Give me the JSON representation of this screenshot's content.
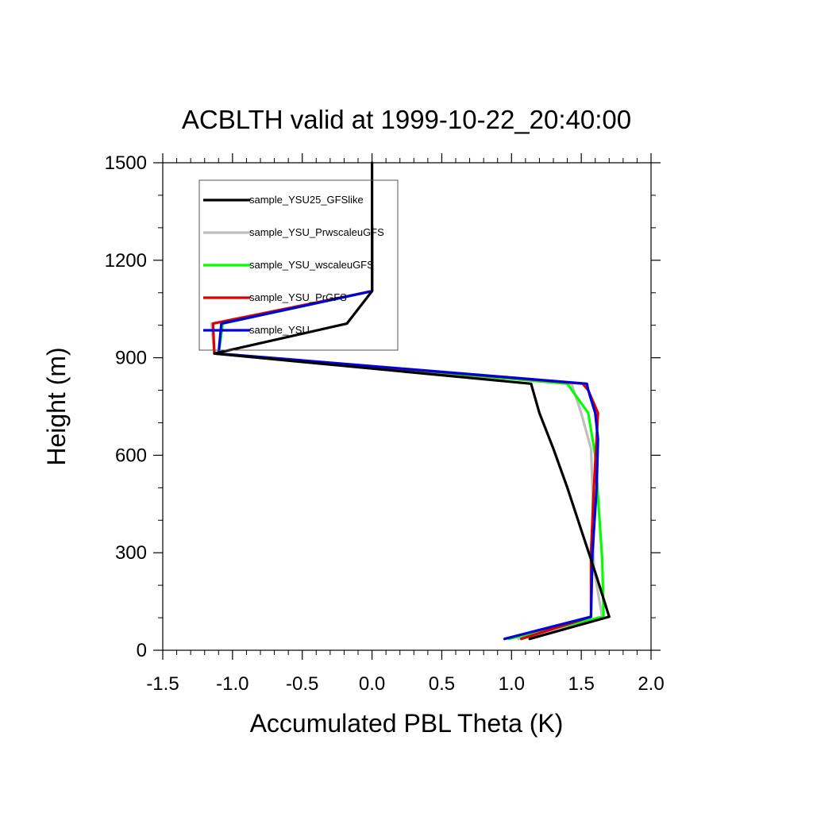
{
  "chart_data": {
    "type": "line",
    "title": "ACBLTH valid at 1999-10-22_20:40:00",
    "xlabel": "Accumulated PBL Theta (K)",
    "ylabel": "Height (m)",
    "xlim": [
      -1.5,
      2.0
    ],
    "ylim": [
      0,
      1500
    ],
    "xticks": [
      {
        "value": -1.5,
        "label": "-1.5"
      },
      {
        "value": -1.0,
        "label": "-1.0"
      },
      {
        "value": -0.5,
        "label": "-0.5"
      },
      {
        "value": 0.0,
        "label": "0.0"
      },
      {
        "value": 0.5,
        "label": "0.5"
      },
      {
        "value": 1.0,
        "label": "1.0"
      },
      {
        "value": 1.5,
        "label": "1.5"
      },
      {
        "value": 2.0,
        "label": "2.0"
      }
    ],
    "yticks": [
      {
        "value": 0,
        "label": "0"
      },
      {
        "value": 300,
        "label": "300"
      },
      {
        "value": 600,
        "label": "600"
      },
      {
        "value": 900,
        "label": "900"
      },
      {
        "value": 1200,
        "label": "1200"
      },
      {
        "value": 1500,
        "label": "1500"
      }
    ],
    "grid": false,
    "legend_position": "top-left",
    "series": [
      {
        "name": "sample_YSU25_GFSlike",
        "color": "#000000",
        "x": [
          1.13,
          1.7,
          1.6,
          1.5,
          1.4,
          1.3,
          1.2,
          1.14,
          -1.13,
          -0.18,
          0.0,
          0.0,
          0.0
        ],
        "y": [
          35,
          103,
          240,
          370,
          500,
          620,
          730,
          820,
          913,
          1005,
          1105,
          1300,
          1500
        ]
      },
      {
        "name": "sample_YSU_PrwscaleuGFS",
        "color": "#bfbfbf",
        "x": [
          1.05,
          1.65,
          1.59,
          1.58,
          1.57,
          1.5,
          1.43,
          -1.13,
          -1.15,
          0.0,
          0.0
        ],
        "y": [
          35,
          103,
          250,
          500,
          620,
          730,
          820,
          913,
          1005,
          1105,
          1300
        ]
      },
      {
        "name": "sample_YSU_wscaleuGFS",
        "color": "#00ff00",
        "x": [
          0.98,
          1.66,
          1.65,
          1.6,
          1.55,
          1.4,
          -1.1,
          -1.07,
          0.0,
          0.0
        ],
        "y": [
          35,
          103,
          280,
          600,
          730,
          820,
          913,
          1005,
          1105,
          1300
        ]
      },
      {
        "name": "sample_YSU_PrGFS",
        "color": "#dd0000",
        "x": [
          1.07,
          1.57,
          1.57,
          1.59,
          1.62,
          1.55,
          1.51,
          -1.13,
          -1.14,
          0.0,
          0.0
        ],
        "y": [
          35,
          103,
          300,
          500,
          730,
          800,
          820,
          913,
          1005,
          1105,
          1300
        ]
      },
      {
        "name": "sample_YSU",
        "color": "#0000dd",
        "x": [
          0.95,
          1.57,
          1.58,
          1.61,
          1.62,
          1.6,
          1.55,
          1.54,
          -1.1,
          -1.08,
          0.0,
          0.0
        ],
        "y": [
          35,
          103,
          300,
          500,
          650,
          730,
          800,
          820,
          913,
          1005,
          1105,
          1300
        ]
      }
    ]
  }
}
